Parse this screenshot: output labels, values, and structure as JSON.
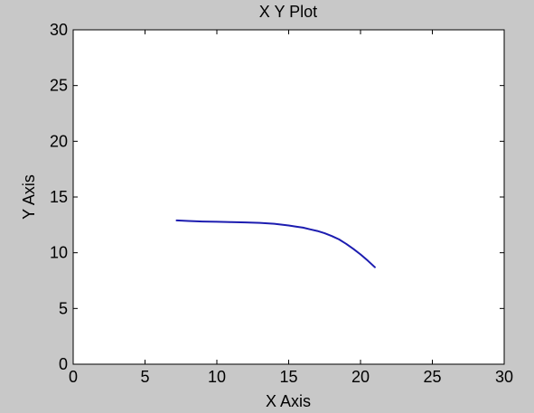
{
  "chart_data": {
    "type": "line",
    "title": "X Y Plot",
    "xlabel": "X Axis",
    "ylabel": "Y Axis",
    "xlim": [
      0,
      30
    ],
    "ylim": [
      0,
      30
    ],
    "xticks": [
      "0",
      "5",
      "10",
      "15",
      "20",
      "25",
      "30"
    ],
    "yticks": [
      "0",
      "5",
      "10",
      "15",
      "20",
      "25",
      "30"
    ],
    "grid": false,
    "series": [
      {
        "color": "#1c1cb0",
        "x": [
          7.2,
          8,
          9,
          10,
          11,
          12,
          13,
          14,
          15,
          15.5,
          16,
          16.5,
          17,
          17.5,
          18,
          18.5,
          19,
          19.5,
          20,
          20.5,
          21
        ],
        "y": [
          12.9,
          12.85,
          12.8,
          12.78,
          12.75,
          12.72,
          12.68,
          12.6,
          12.45,
          12.35,
          12.25,
          12.1,
          11.95,
          11.75,
          11.5,
          11.2,
          10.8,
          10.35,
          9.85,
          9.3,
          8.7
        ]
      }
    ],
    "colors": {
      "background": "#c8c8c8",
      "plot_area": "#ffffff",
      "axes": "#000000"
    }
  }
}
